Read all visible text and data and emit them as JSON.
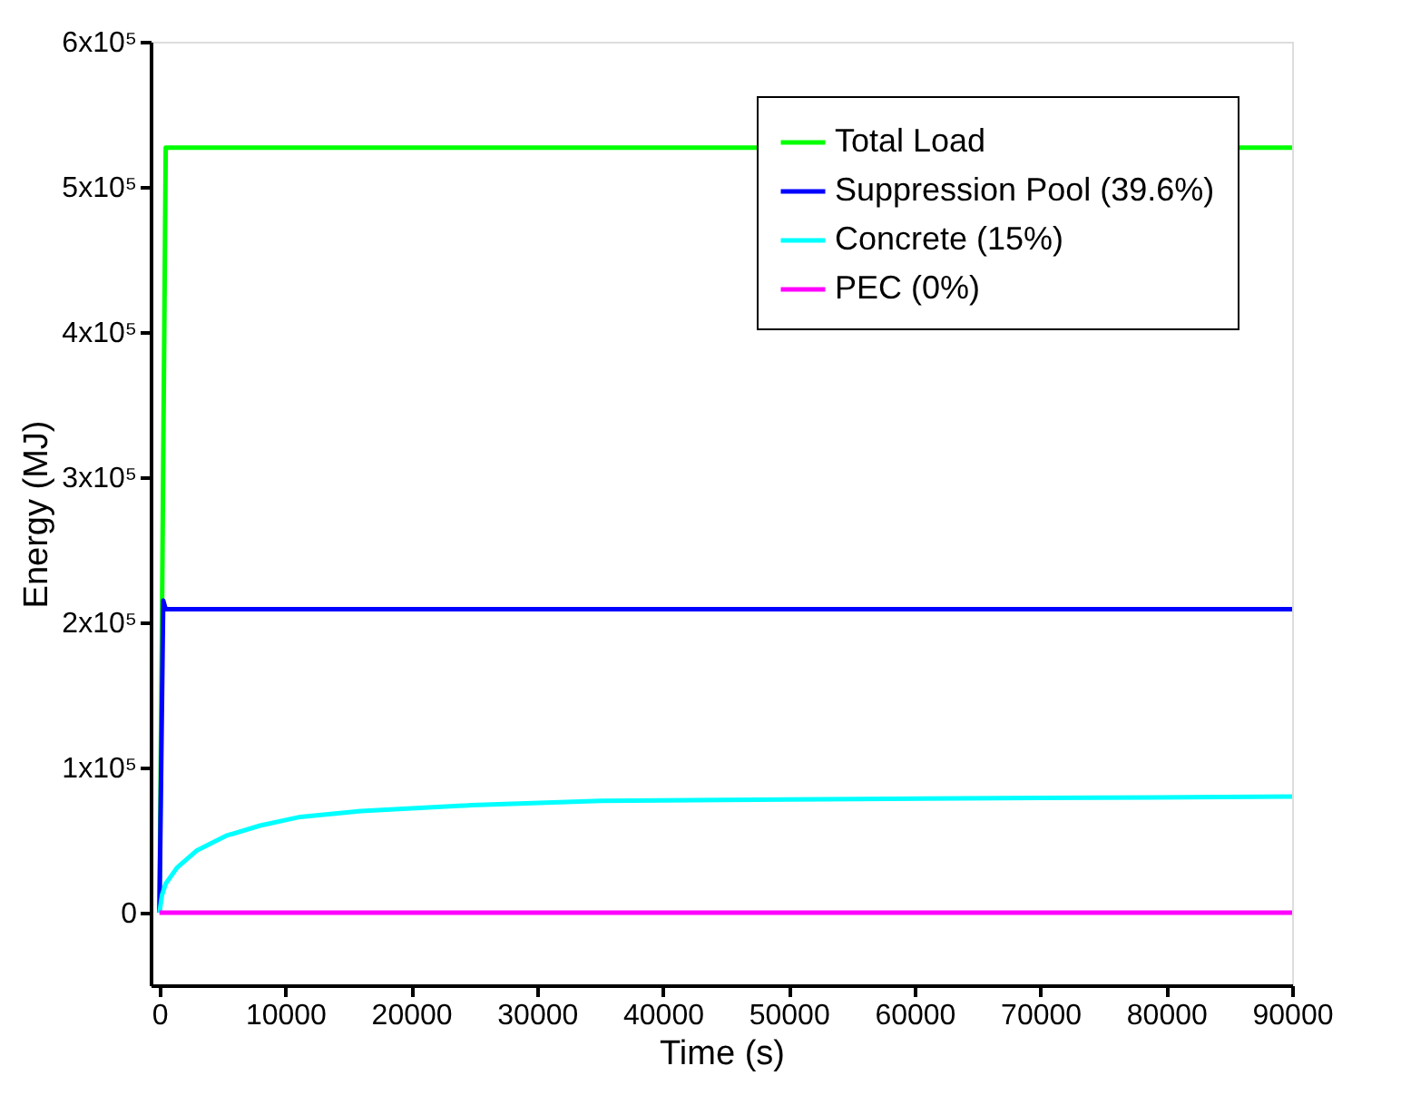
{
  "chart_data": {
    "type": "line",
    "xlabel": "Time (s)",
    "ylabel": "Energy (MJ)",
    "xlim": [
      -700,
      90000
    ],
    "xticks": [
      0,
      10000,
      20000,
      30000,
      40000,
      50000,
      60000,
      70000,
      80000,
      90000
    ],
    "ylim": [
      -50000,
      600000
    ],
    "yticks": [
      0,
      {
        "value": 100000,
        "label": "1x10⁵"
      },
      {
        "value": 200000,
        "label": "2x10⁵"
      },
      {
        "value": 300000,
        "label": "3x10⁵"
      },
      {
        "value": 400000,
        "label": "4x10⁵"
      },
      {
        "value": 500000,
        "label": "5x10⁵"
      },
      {
        "value": 600000,
        "label": "6x10⁵"
      }
    ],
    "grid": false,
    "legend": "top right",
    "marker": "none",
    "line_style": "solid",
    "series": [
      {
        "name": "Total Load",
        "color": "#00ff00",
        "x": [
          0,
          200,
          500,
          90000
        ],
        "values": [
          0,
          200000,
          527000,
          527000
        ]
      },
      {
        "name": "Suppression Pool (39.6%)",
        "color": "#0000ff",
        "x": [
          0,
          300,
          500,
          90000
        ],
        "values": [
          0,
          215000,
          209000,
          209000
        ]
      },
      {
        "name": "Concrete (15%)",
        "color": "#00ffff",
        "x": [
          0,
          200,
          500,
          1400,
          3000,
          5300,
          8000,
          11200,
          16000,
          24800,
          35000,
          50000,
          70000,
          90000
        ],
        "values": [
          0,
          12000,
          20000,
          31000,
          43000,
          53000,
          60000,
          66000,
          70000,
          74000,
          77000,
          78000,
          79000,
          80000
        ]
      },
      {
        "name": "PEC (0%)",
        "color": "#ff00ff",
        "x": [
          0,
          90000
        ],
        "values": [
          0,
          0
        ]
      }
    ]
  }
}
